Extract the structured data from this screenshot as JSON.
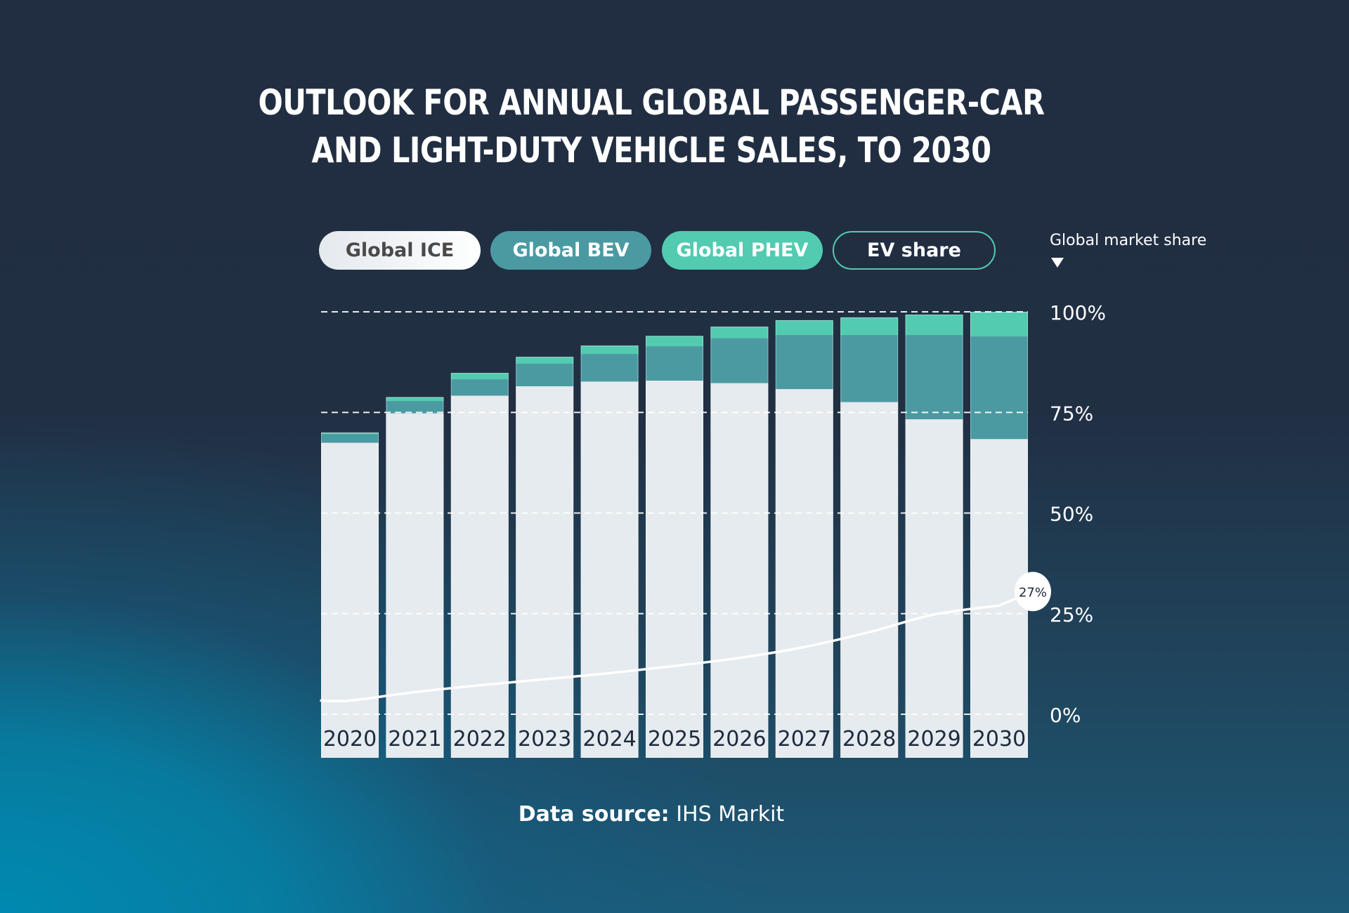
{
  "title_lines": [
    "OUTLOOK FOR ANNUAL GLOBAL PASSENGER-CAR",
    "AND LIGHT-DUTY VEHICLE SALES, TO 2030"
  ],
  "legend": {
    "ice": "Global ICE",
    "bev": "Global BEV",
    "phev": "Global PHEV",
    "ev_share": "EV share",
    "axis_note": "Global market share"
  },
  "colors": {
    "ice": "#e5ebef",
    "bev": "#4b9aa2",
    "phev": "#52cbb1",
    "ev_share_line": "#ffffff",
    "year_label": "#1d2a3d",
    "background_top": "#212e42",
    "background_bottom_left": "#0088ae"
  },
  "source": {
    "label": "Data source:",
    "value": "IHS Markit"
  },
  "chart_data": {
    "type": "bar",
    "stacked": true,
    "title": "OUTLOOK FOR ANNUAL GLOBAL PASSENGER-CAR AND LIGHT-DUTY VEHICLE SALES, TO 2030",
    "xlabel": "",
    "ylabel": "Global market share",
    "ylim": [
      0,
      100
    ],
    "yticks": [
      0,
      25,
      50,
      75,
      100
    ],
    "ytick_labels": [
      "0%",
      "25%",
      "50%",
      "75%",
      "100%"
    ],
    "grid": true,
    "legend_position": "top",
    "categories": [
      "2020",
      "2021",
      "2022",
      "2023",
      "2024",
      "2025",
      "2026",
      "2027",
      "2028",
      "2029",
      "2030"
    ],
    "series": [
      {
        "name": "Global ICE",
        "type": "bar",
        "values": [
          67.5,
          74.8,
          79.2,
          81.5,
          82.7,
          82.9,
          82.3,
          80.8,
          77.6,
          73.3,
          68.4
        ]
      },
      {
        "name": "Global BEV",
        "type": "bar",
        "values": [
          2.1,
          3.0,
          4.0,
          5.6,
          6.8,
          8.5,
          11.1,
          13.4,
          16.6,
          20.9,
          25.5
        ]
      },
      {
        "name": "Global PHEV",
        "type": "bar",
        "values": [
          0.4,
          1.0,
          1.6,
          1.7,
          2.1,
          2.6,
          2.9,
          3.7,
          4.4,
          5.1,
          6.1
        ]
      },
      {
        "name": "EV share",
        "type": "line",
        "values": [
          3.4,
          5.5,
          7.2,
          8.7,
          10.2,
          12.0,
          14.0,
          16.7,
          20.4,
          24.8,
          27
        ]
      }
    ],
    "annotations": [
      {
        "category": "2030",
        "series": "EV share",
        "text": "27%"
      }
    ]
  }
}
